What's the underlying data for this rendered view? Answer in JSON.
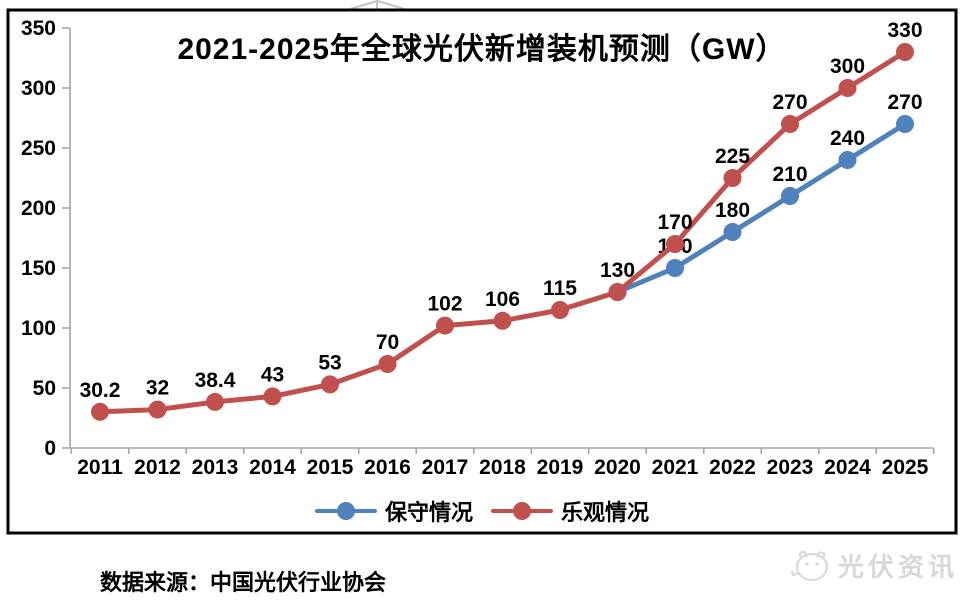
{
  "chart_data": {
    "type": "line",
    "title": "2021-2025年全球光伏新增装机预测（GW）",
    "x_labels": [
      "2011",
      "2012",
      "2013",
      "2014",
      "2015",
      "2016",
      "2017",
      "2018",
      "2019",
      "2020",
      "2021",
      "2022",
      "2023",
      "2024",
      "2025"
    ],
    "ylim": [
      0,
      350
    ],
    "yticks": [
      0,
      50,
      100,
      150,
      200,
      250,
      300,
      350
    ],
    "grid": false,
    "legend_position": "bottom-center",
    "series": [
      {
        "name": "保守情况",
        "color": "#4F81BD",
        "values": [
          null,
          null,
          null,
          null,
          null,
          null,
          null,
          null,
          null,
          130,
          150,
          180,
          210,
          240,
          270
        ],
        "point_labels": [
          "",
          "",
          "",
          "",
          "",
          "",
          "",
          "",
          "",
          "",
          "150",
          "180",
          "210",
          "240",
          "270"
        ]
      },
      {
        "name": "乐观情况",
        "color": "#C0504D",
        "values": [
          30.2,
          32,
          38.4,
          43,
          53,
          70,
          102,
          106,
          115,
          130,
          170,
          225,
          270,
          300,
          330
        ],
        "point_labels": [
          "30.2",
          "32",
          "38.4",
          "43",
          "53",
          "70",
          "102",
          "106",
          "115",
          "130",
          "170",
          "225",
          "270",
          "300",
          "330"
        ]
      }
    ]
  },
  "legend": {
    "items": [
      {
        "label": "保守情况",
        "color": "#4F81BD"
      },
      {
        "label": "乐观情况",
        "color": "#C0504D"
      }
    ]
  },
  "footer": {
    "source_note": "数据来源：中国光伏行业协会"
  },
  "watermark": {
    "text": "光伏资讯"
  },
  "colors": {
    "conservative": "#4F81BD",
    "optimistic": "#C0504D",
    "axis": "#A6A6A6",
    "border": "#000000"
  }
}
